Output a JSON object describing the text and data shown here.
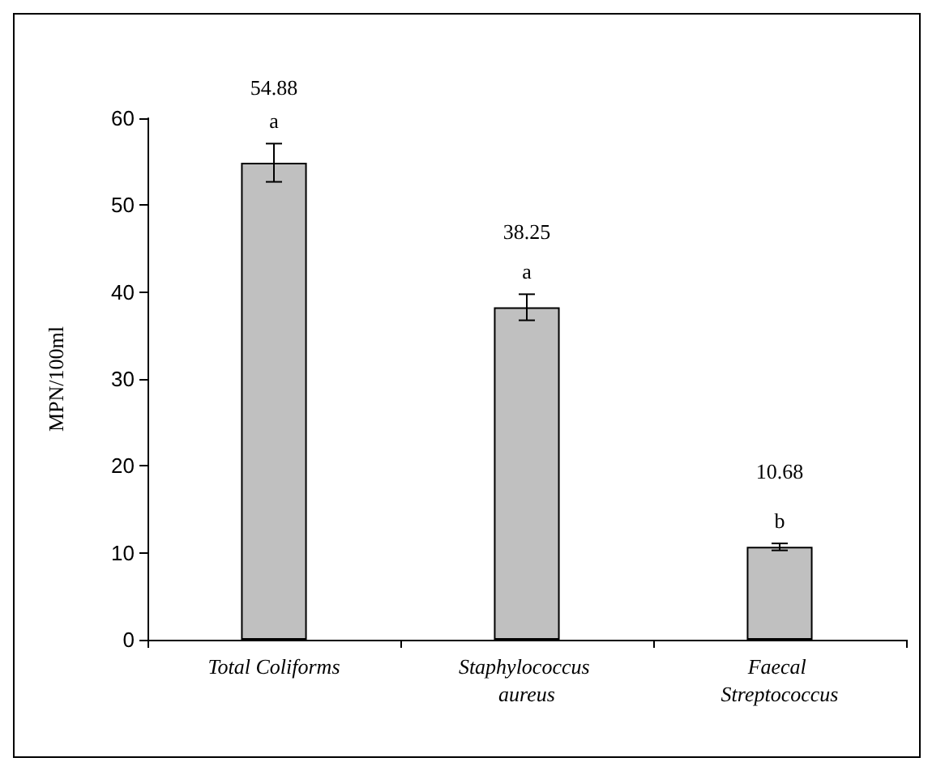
{
  "chart_data": {
    "type": "bar",
    "ylabel": "MPN/100ml",
    "categories": [
      "Total Coliforms",
      "Staphylococcus aureus",
      "Faecal Streptococcus"
    ],
    "values": [
      54.88,
      38.25,
      10.68
    ],
    "color": "#c0c0c0",
    "errors": [
      2.2,
      1.5,
      0.4
    ],
    "data_labels": true,
    "annotations": [
      "a",
      "a",
      "b"
    ],
    "ylim": [
      0,
      60
    ],
    "yticks": [
      0,
      10,
      20,
      30,
      40,
      50,
      60
    ],
    "grid": false
  }
}
